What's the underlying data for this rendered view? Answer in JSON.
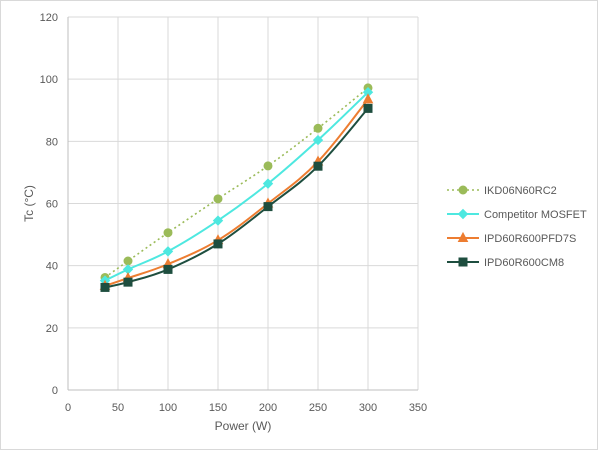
{
  "chart_data": {
    "type": "line",
    "xlabel": "Power (W)",
    "ylabel": "Tc (°C)",
    "xlim": [
      0,
      350
    ],
    "ylim": [
      0,
      120
    ],
    "xticks": [
      "0",
      "50",
      "100",
      "150",
      "200",
      "250",
      "300",
      "350"
    ],
    "yticks": [
      "0",
      "20",
      "40",
      "60",
      "80",
      "100",
      "120"
    ],
    "grid": true,
    "legend_position": "right",
    "series": [
      {
        "name": "IKD06N60RC2",
        "color": "#9bbb59",
        "marker": "circle",
        "line_style": "dotted",
        "x": [
          37,
          60,
          100,
          150,
          200,
          250,
          300
        ],
        "y": [
          36.2,
          41.5,
          50.6,
          61.5,
          72.1,
          84.2,
          97.2
        ]
      },
      {
        "name": "Competitor MOSFET",
        "color": "#4ee8e0",
        "marker": "diamond",
        "line_style": "solid",
        "x": [
          37,
          60,
          100,
          150,
          200,
          250,
          300
        ],
        "y": [
          35.2,
          38.8,
          44.6,
          54.5,
          66.4,
          80.4,
          95.8
        ]
      },
      {
        "name": "IPD60R600PFD7S",
        "color": "#ed7d31",
        "marker": "triangle",
        "line_style": "solid",
        "x": [
          37,
          60,
          100,
          150,
          200,
          250,
          300
        ],
        "y": [
          33.5,
          36.0,
          40.5,
          48.2,
          60.0,
          73.5,
          93.5
        ]
      },
      {
        "name": "IPD60R600CM8",
        "color": "#1e4e3f",
        "marker": "square",
        "line_style": "solid",
        "x": [
          37,
          60,
          100,
          150,
          200,
          250,
          300
        ],
        "y": [
          33.0,
          34.7,
          38.8,
          47.0,
          59.0,
          72.0,
          90.6
        ]
      }
    ]
  }
}
